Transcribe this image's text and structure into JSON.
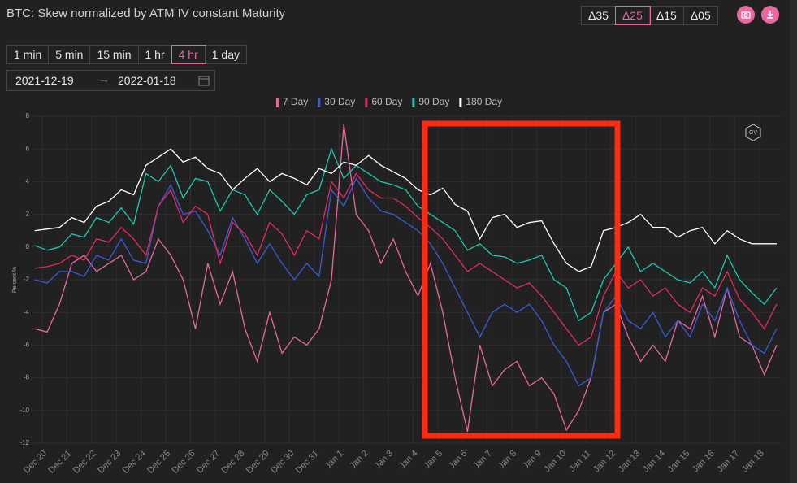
{
  "ui": {
    "deltas": [
      "Δ35",
      "Δ25",
      "Δ15",
      "Δ05"
    ],
    "active_delta": 1,
    "intervals": [
      "1 min",
      "5 min",
      "15 min",
      "1 hr",
      "4 hr",
      "1 day"
    ],
    "active_interval": 4,
    "date_from": "2021-12-19",
    "date_to": "2022-01-18"
  },
  "chart_data": {
    "type": "line",
    "title": "BTC: Skew normalized by ATM IV constant Maturity",
    "ylabel": "Percent %",
    "grid": true,
    "legend": "top",
    "xlim": [
      -0.39,
      29.9
    ],
    "xticks": [
      {
        "value": 0,
        "label": "Dec 20"
      },
      {
        "value": 1,
        "label": "Dec 21"
      },
      {
        "value": 2,
        "label": "Dec 22"
      },
      {
        "value": 3,
        "label": "Dec 23"
      },
      {
        "value": 4,
        "label": "Dec 24"
      },
      {
        "value": 5,
        "label": "Dec 25"
      },
      {
        "value": 6,
        "label": "Dec 26"
      },
      {
        "value": 7,
        "label": "Dec 27"
      },
      {
        "value": 8,
        "label": "Dec 28"
      },
      {
        "value": 9,
        "label": "Dec 29"
      },
      {
        "value": 10,
        "label": "Dec 30"
      },
      {
        "value": 11,
        "label": "Dec 31"
      },
      {
        "value": 12,
        "label": "Jan 1"
      },
      {
        "value": 13,
        "label": "Jan 2"
      },
      {
        "value": 14,
        "label": "Jan 3"
      },
      {
        "value": 15,
        "label": "Jan 4"
      },
      {
        "value": 16,
        "label": "Jan 5"
      },
      {
        "value": 17,
        "label": "Jan 6"
      },
      {
        "value": 18,
        "label": "Jan 7"
      },
      {
        "value": 19,
        "label": "Jan 8"
      },
      {
        "value": 20,
        "label": "Jan 9"
      },
      {
        "value": 21,
        "label": "Jan 10"
      },
      {
        "value": 22,
        "label": "Jan 11"
      },
      {
        "value": 23,
        "label": "Jan 12"
      },
      {
        "value": 24,
        "label": "Jan 13"
      },
      {
        "value": 25,
        "label": "Jan 14"
      },
      {
        "value": 26,
        "label": "Jan 15"
      },
      {
        "value": 27,
        "label": "Jan 16"
      },
      {
        "value": 28,
        "label": "Jan 17"
      },
      {
        "value": 29,
        "label": "Jan 18"
      }
    ],
    "ylim": [
      -12,
      8
    ],
    "yticks": [
      8,
      6,
      4,
      2,
      0,
      -2,
      -4,
      -6,
      -8,
      -10,
      -12
    ],
    "x": [
      -0.3,
      0.2,
      0.7,
      1.2,
      1.7,
      2.2,
      2.7,
      3.2,
      3.7,
      4.2,
      4.7,
      5.2,
      5.7,
      6.2,
      6.7,
      7.2,
      7.7,
      8.2,
      8.7,
      9.2,
      9.7,
      10.2,
      10.7,
      11.2,
      11.7,
      12.2,
      12.7,
      13.2,
      13.7,
      14.2,
      14.7,
      15.2,
      15.7,
      16.2,
      16.7,
      17.2,
      17.7,
      18.2,
      18.7,
      19.2,
      19.7,
      20.2,
      20.7,
      21.2,
      21.7,
      22.2,
      22.7,
      23.2,
      23.7,
      24.2,
      24.7,
      25.2,
      25.7,
      26.2,
      26.7,
      27.2,
      27.7,
      28.2,
      28.7,
      29.2,
      29.7
    ],
    "series": [
      {
        "name": "7 Day",
        "color": "#e8689f",
        "values": [
          -5.0,
          -5.2,
          -3.5,
          -1.0,
          -0.5,
          -1.5,
          -1.0,
          -0.5,
          -2.0,
          -1.5,
          0.5,
          -0.5,
          -2.0,
          -5.0,
          -1.0,
          -3.5,
          -1.5,
          -5.0,
          -7.0,
          -4.0,
          -6.5,
          -5.5,
          -6.0,
          -5.0,
          -2.0,
          7.5,
          2.0,
          1.0,
          -1.0,
          0.5,
          -1.5,
          -3.0,
          -1.0,
          -4.0,
          -8.0,
          -11.3,
          -6.0,
          -8.5,
          -7.5,
          -7.0,
          -8.5,
          -8.0,
          -9.0,
          -11.2,
          -10.0,
          -8.0,
          -4.0,
          -3.5,
          -5.5,
          -7.0,
          -6.0,
          -7.0,
          -4.5,
          -5.0,
          -3.0,
          -5.5,
          -2.5,
          -5.5,
          -6.0,
          -7.8,
          -6.0
        ]
      },
      {
        "name": "30 Day",
        "color": "#3b5bd6",
        "values": [
          -2.0,
          -2.2,
          -1.5,
          -1.5,
          -1.8,
          -0.5,
          -0.8,
          0.5,
          -0.8,
          -1.0,
          2.5,
          3.8,
          2.0,
          2.2,
          1.0,
          -0.5,
          1.8,
          0.5,
          -1.0,
          0.2,
          -1.0,
          -2.0,
          -1.0,
          -1.8,
          3.5,
          2.5,
          4.2,
          3.0,
          2.2,
          2.0,
          1.5,
          1.0,
          0.2,
          -1.0,
          -2.5,
          -4.0,
          -5.5,
          -4.0,
          -3.5,
          -4.0,
          -3.5,
          -4.5,
          -6.0,
          -7.0,
          -8.5,
          -8.0,
          -4.0,
          -3.0,
          -4.5,
          -5.0,
          -4.0,
          -5.5,
          -4.5,
          -5.5,
          -3.5,
          -4.5,
          -2.5,
          -4.5,
          -6.0,
          -6.5,
          -5.0
        ]
      },
      {
        "name": "60 Day",
        "color": "#e32c60",
        "values": [
          -1.3,
          -1.2,
          -1.0,
          -0.5,
          -0.8,
          0.5,
          0.3,
          1.2,
          0.5,
          -0.5,
          2.5,
          3.5,
          1.5,
          2.5,
          2.0,
          -1.0,
          1.5,
          0.8,
          -0.5,
          1.5,
          0.8,
          -0.5,
          1.0,
          0.5,
          4.0,
          3.0,
          4.5,
          3.5,
          3.0,
          3.0,
          2.5,
          1.8,
          1.2,
          0.5,
          -0.5,
          -1.5,
          -1.0,
          -1.5,
          -2.0,
          -2.5,
          -2.2,
          -3.0,
          -4.0,
          -5.0,
          -6.0,
          -5.5,
          -3.0,
          -1.5,
          -2.5,
          -2.0,
          -3.0,
          -2.5,
          -3.5,
          -4.0,
          -2.5,
          -3.0,
          -1.5,
          -3.2,
          -4.0,
          -5.0,
          -3.5
        ]
      },
      {
        "name": "90 Day",
        "color": "#1dc8b0",
        "values": [
          0.1,
          -0.2,
          0.0,
          0.8,
          0.6,
          1.8,
          1.5,
          2.4,
          1.4,
          4.5,
          4.0,
          5.0,
          3.0,
          4.2,
          4.0,
          2.2,
          3.5,
          3.2,
          2.0,
          3.5,
          2.8,
          2.0,
          3.2,
          3.5,
          6.0,
          4.2,
          5.0,
          4.5,
          4.0,
          3.8,
          3.5,
          2.5,
          2.0,
          1.5,
          1.0,
          -0.2,
          0.2,
          -0.5,
          -0.6,
          -1.0,
          -0.8,
          -0.5,
          -2.0,
          -2.5,
          -4.5,
          -4.0,
          -2.0,
          -1.0,
          0.0,
          -1.5,
          -1.0,
          -1.5,
          -2.0,
          -2.2,
          -1.5,
          -2.5,
          -0.5,
          -2.0,
          -2.8,
          -3.5,
          -2.5
        ]
      },
      {
        "name": "180 Day",
        "color": "#ffffff",
        "values": [
          1.0,
          1.1,
          1.2,
          1.8,
          1.5,
          2.5,
          2.8,
          3.5,
          3.2,
          5.0,
          5.5,
          6.0,
          5.2,
          5.5,
          4.8,
          4.5,
          3.5,
          4.2,
          4.8,
          4.0,
          4.5,
          4.2,
          3.8,
          4.8,
          4.5,
          5.2,
          5.0,
          5.6,
          5.0,
          4.6,
          4.2,
          3.5,
          3.2,
          3.6,
          2.6,
          2.2,
          0.5,
          1.8,
          2.0,
          1.2,
          1.5,
          1.6,
          0.2,
          -1.0,
          -1.5,
          -1.2,
          1.0,
          1.2,
          1.5,
          2.0,
          1.2,
          1.2,
          0.6,
          1.0,
          1.2,
          0.2,
          1.0,
          0.5,
          0.2,
          0.2,
          0.2
        ]
      }
    ]
  }
}
